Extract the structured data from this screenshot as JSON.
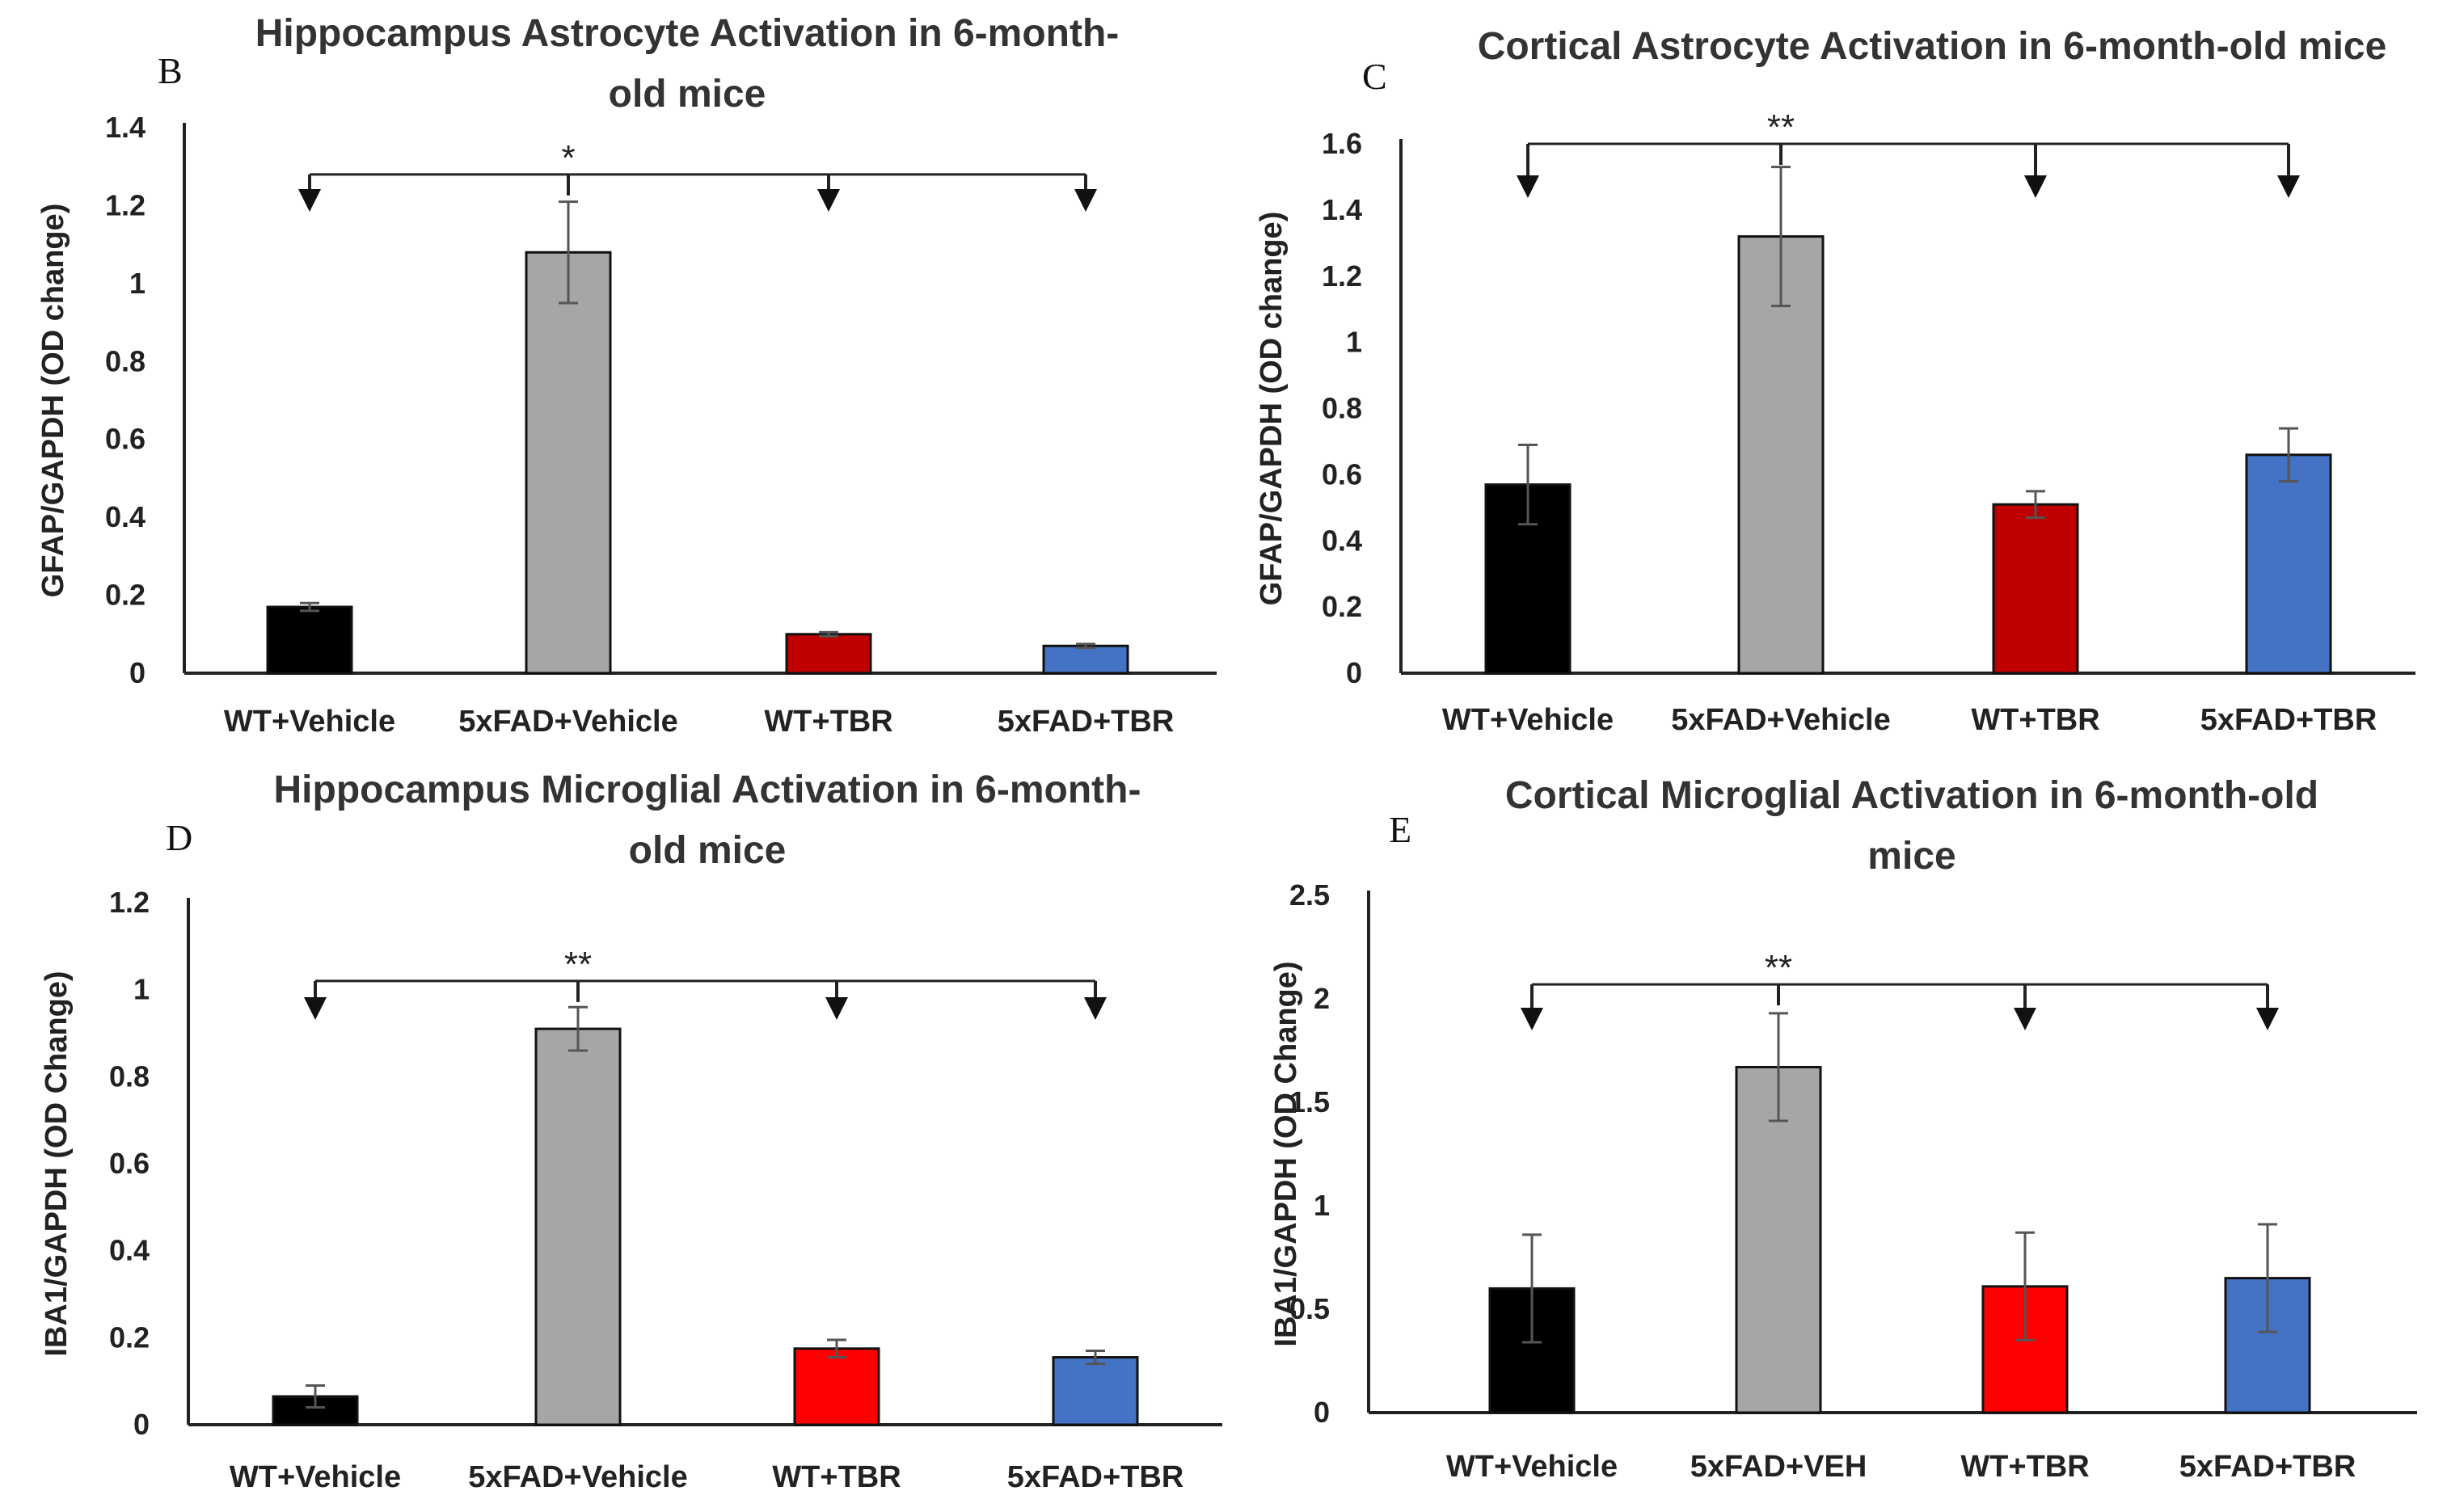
{
  "chart_data": [
    {
      "panel": "B",
      "type": "bar",
      "title": [
        "Hippocampus Astrocyte Activation in 6-month-",
        "old mice"
      ],
      "ylabel": "GFAP/GAPDH (OD change)",
      "categories": [
        "WT+Vehicle",
        "5xFAD+Vehicle",
        "WT+TBR",
        "5xFAD+TBR"
      ],
      "values": [
        0.17,
        1.08,
        0.1,
        0.07
      ],
      "errors": [
        0.01,
        0.13,
        0.005,
        0.005
      ],
      "colors": [
        "#000000",
        "#a6a6a6",
        "#c00000",
        "#4472c4"
      ],
      "ylim": [
        0,
        1.4
      ],
      "yticks": [
        0,
        0.2,
        0.4,
        0.6,
        0.8,
        1,
        1.2,
        1.4
      ],
      "tick_labels": [
        "0",
        "0.2",
        "0.4",
        "0.6",
        "0.8",
        "1",
        "1.2",
        "1.4"
      ],
      "significance": "*",
      "bracket_level": 1.28
    },
    {
      "panel": "C",
      "type": "bar",
      "title": [
        "Cortical Astrocyte Activation in 6-month-old mice"
      ],
      "ylabel": "GFAP/GAPDH (OD change)",
      "categories": [
        "WT+Vehicle",
        "5xFAD+Vehicle",
        "WT+TBR",
        "5xFAD+TBR"
      ],
      "values": [
        0.57,
        1.32,
        0.51,
        0.66
      ],
      "errors": [
        0.12,
        0.21,
        0.04,
        0.08
      ],
      "colors": [
        "#000000",
        "#a6a6a6",
        "#c00000",
        "#4472c4"
      ],
      "ylim": [
        0,
        1.6
      ],
      "yticks": [
        0,
        0.2,
        0.4,
        0.6,
        0.8,
        1,
        1.2,
        1.4,
        1.6
      ],
      "tick_labels": [
        "0",
        "0.2",
        "0.4",
        "0.6",
        "0.8",
        "1",
        "1.2",
        "1.4",
        "1.6"
      ],
      "significance": "**",
      "bracket_level": 1.6
    },
    {
      "panel": "D",
      "type": "bar",
      "title": [
        "Hippocampus Microglial Activation in 6-month-",
        "old mice"
      ],
      "ylabel": "IBA1/GAPDH (OD Change)",
      "categories": [
        "WT+Vehicle",
        "5xFAD+Vehicle",
        "WT+TBR",
        "5xFAD+TBR"
      ],
      "values": [
        0.065,
        0.91,
        0.175,
        0.155
      ],
      "errors": [
        0.025,
        0.05,
        0.02,
        0.015
      ],
      "colors": [
        "#000000",
        "#a6a6a6",
        "#ff0000",
        "#4472c4"
      ],
      "ylim": [
        0,
        1.2
      ],
      "yticks": [
        0,
        0.2,
        0.4,
        0.6,
        0.8,
        1,
        1.2
      ],
      "tick_labels": [
        "0",
        "0.2",
        "0.4",
        "0.6",
        "0.8",
        "1",
        "1.2"
      ],
      "significance": "**",
      "bracket_level": 1.02
    },
    {
      "panel": "E",
      "type": "bar",
      "title": [
        "Cortical Microglial Activation in 6-month-old",
        "mice"
      ],
      "ylabel": "IBA1/GAPDH (OD Change)",
      "categories": [
        "WT+Vehicle",
        "5xFAD+VEH",
        "WT+TBR",
        "5xFAD+TBR"
      ],
      "values": [
        0.6,
        1.67,
        0.61,
        0.65
      ],
      "errors": [
        0.26,
        0.26,
        0.26,
        0.26
      ],
      "colors": [
        "#000000",
        "#a6a6a6",
        "#ff0000",
        "#4472c4"
      ],
      "ylim": [
        0,
        2.5
      ],
      "yticks": [
        0,
        0.5,
        1,
        1.5,
        2,
        2.5
      ],
      "tick_labels": [
        "0",
        "0.5",
        "1",
        "1.5",
        "2",
        "2.5"
      ],
      "significance": "**",
      "bracket_level": 2.07
    }
  ]
}
